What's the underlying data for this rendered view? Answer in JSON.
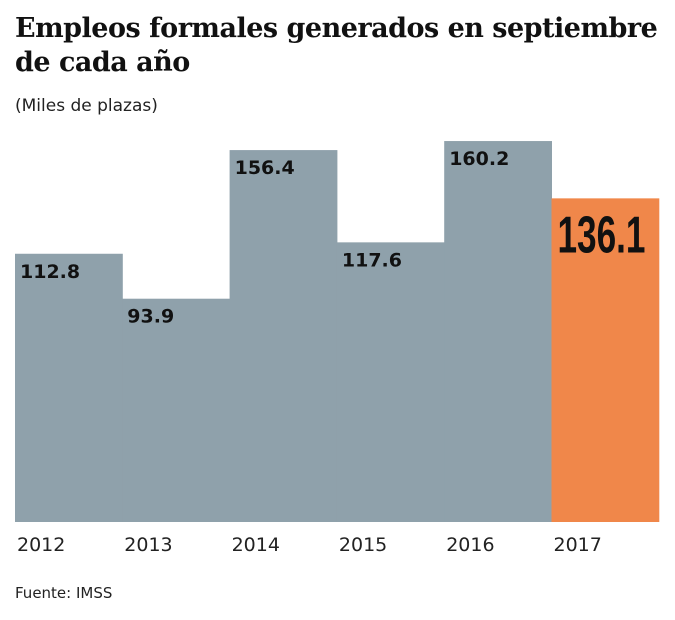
{
  "chart_data": {
    "type": "bar",
    "title": "Empleos formales generados en septiembre de cada año",
    "subtitle": "(Miles de plazas)",
    "categories": [
      "2012",
      "2013",
      "2014",
      "2015",
      "2016",
      "2017"
    ],
    "values": [
      112.8,
      93.9,
      156.4,
      117.6,
      160.2,
      136.1
    ],
    "labels": [
      "112.8",
      "93.9",
      "156.4",
      "117.6",
      "160.2",
      "136.1"
    ],
    "ylim": [
      0,
      170
    ],
    "grid": false,
    "colors": {
      "default": "#8fa1ab",
      "highlight": "#f0874a"
    },
    "highlight_index": 5,
    "source": "Fuente: IMSS"
  }
}
